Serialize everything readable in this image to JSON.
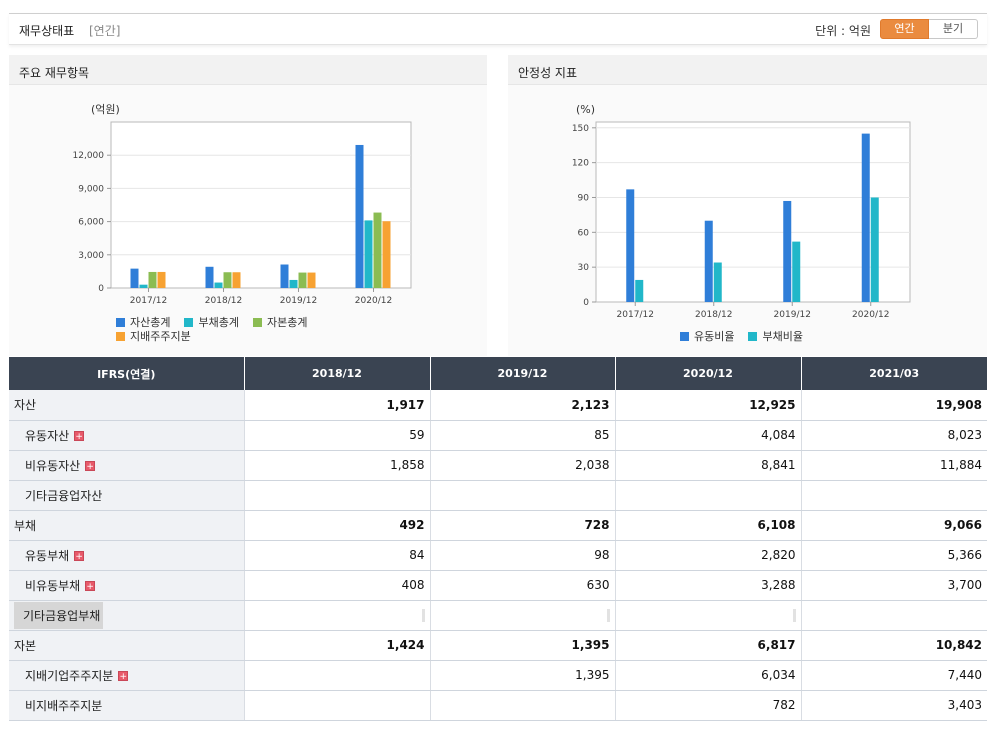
{
  "header": {
    "title": "재무상태표",
    "period": "[연간]",
    "unit": "단위 : 억원",
    "tabs": [
      {
        "label": "연간",
        "active": true
      },
      {
        "label": "분기",
        "active": false
      }
    ]
  },
  "panels": {
    "left_title": "주요 재무항목",
    "right_title": "안정성 지표"
  },
  "chart_data": [
    {
      "type": "bar",
      "title": "",
      "ylabel": "(억원)",
      "categories": [
        "2017/12",
        "2018/12",
        "2019/12",
        "2020/12"
      ],
      "ylim": [
        0,
        15000
      ],
      "yticks": [
        0,
        3000,
        6000,
        9000,
        12000
      ],
      "ytick_labels": [
        "0",
        "3,000",
        "6,000",
        "9,000",
        "12,000"
      ],
      "legend_placement": "bottom-left",
      "series": [
        {
          "name": "자산총계",
          "color": "#2f7ed8",
          "values": [
            1750,
            1917,
            2123,
            12925
          ]
        },
        {
          "name": "부채총계",
          "color": "#21b7c9",
          "values": [
            300,
            492,
            728,
            6108
          ]
        },
        {
          "name": "자본총계",
          "color": "#8bbc52",
          "values": [
            1450,
            1424,
            1395,
            6817
          ]
        },
        {
          "name": "지배주주지분",
          "color": "#f7a232",
          "values": [
            1450,
            1424,
            1395,
            6034
          ]
        }
      ]
    },
    {
      "type": "bar",
      "title": "",
      "ylabel": "(%)",
      "categories": [
        "2017/12",
        "2018/12",
        "2019/12",
        "2020/12"
      ],
      "ylim": [
        0,
        155
      ],
      "yticks": [
        0,
        30,
        60,
        90,
        120,
        150
      ],
      "ytick_labels": [
        "0",
        "30",
        "60",
        "90",
        "120",
        "150"
      ],
      "legend_placement": "bottom-center",
      "series": [
        {
          "name": "유동비율",
          "color": "#2f7ed8",
          "values": [
            97,
            70,
            87,
            145
          ]
        },
        {
          "name": "부채비율",
          "color": "#21b7c9",
          "values": [
            19,
            34,
            52,
            90
          ]
        }
      ]
    }
  ],
  "table": {
    "columns": [
      "IFRS(연결)",
      "2018/12",
      "2019/12",
      "2020/12",
      "2021/03"
    ],
    "rows": [
      {
        "label": "자산",
        "level": "major",
        "plus": false,
        "values": [
          "1,917",
          "2,123",
          "12,925",
          "19,908"
        ]
      },
      {
        "label": "유동자산",
        "level": "sub",
        "plus": true,
        "values": [
          "59",
          "85",
          "4,084",
          "8,023"
        ]
      },
      {
        "label": "비유동자산",
        "level": "sub",
        "plus": true,
        "values": [
          "1,858",
          "2,038",
          "8,841",
          "11,884"
        ]
      },
      {
        "label": "기타금융업자산",
        "level": "sub",
        "plus": false,
        "values": [
          "",
          "",
          "",
          ""
        ]
      },
      {
        "label": "부채",
        "level": "major",
        "plus": false,
        "values": [
          "492",
          "728",
          "6,108",
          "9,066"
        ]
      },
      {
        "label": "유동부채",
        "level": "sub",
        "plus": true,
        "values": [
          "84",
          "98",
          "2,820",
          "5,366"
        ]
      },
      {
        "label": "비유동부채",
        "level": "sub",
        "plus": true,
        "values": [
          "408",
          "630",
          "3,288",
          "3,700"
        ]
      },
      {
        "label": "기타금융업부채",
        "level": "sub",
        "plus": false,
        "highlight": true,
        "values": [
          "",
          "",
          "",
          ""
        ]
      },
      {
        "label": "자본",
        "level": "major",
        "plus": false,
        "values": [
          "1,424",
          "1,395",
          "6,817",
          "10,842"
        ]
      },
      {
        "label": "지배기업주주지분",
        "level": "sub",
        "plus": true,
        "values": [
          "",
          "1,395",
          "6,034",
          "7,440"
        ]
      },
      {
        "label": "비지배주주지분",
        "level": "sub",
        "plus": false,
        "values": [
          "",
          "",
          "782",
          "3,403"
        ]
      }
    ]
  }
}
